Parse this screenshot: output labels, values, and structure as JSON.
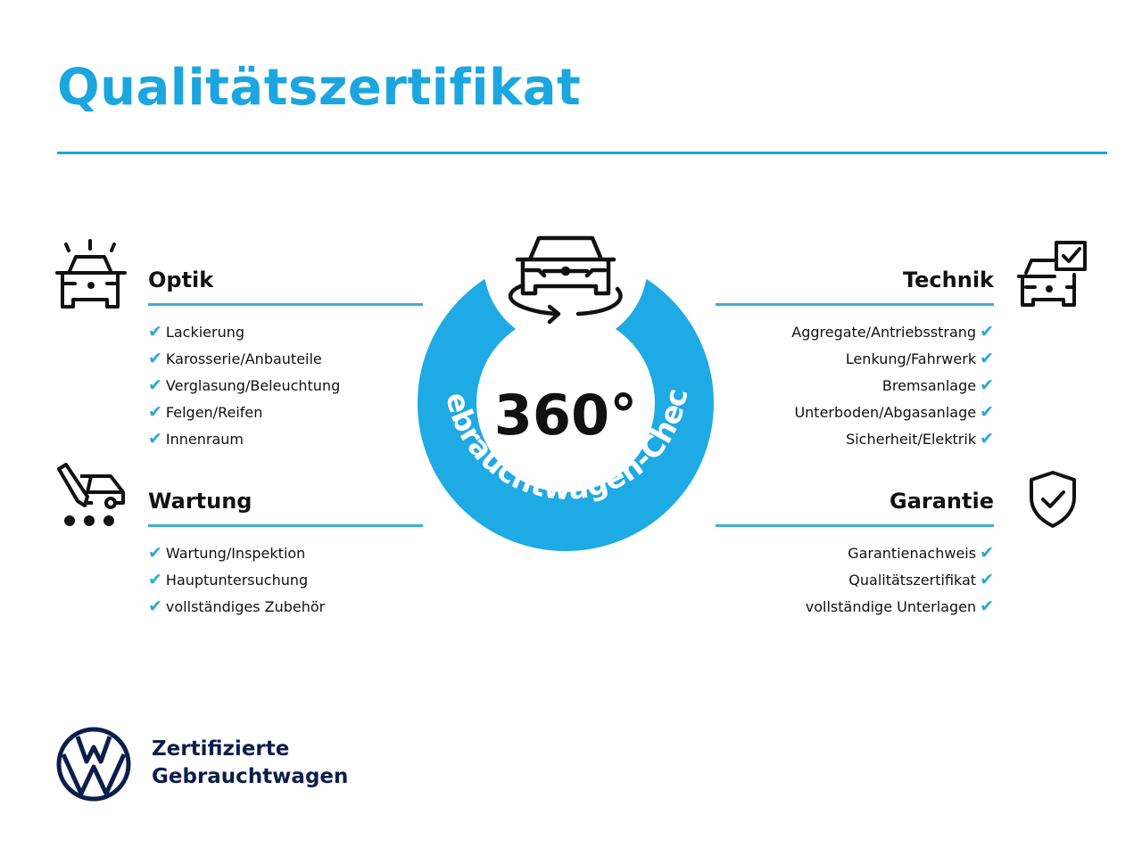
{
  "title": "Qualitätszertifikat",
  "center": {
    "degrees": "360°",
    "arc_text": "Gebrauchtwagen-Check"
  },
  "sections": {
    "optik": {
      "heading": "Optik",
      "items": [
        "Lackierung",
        "Karosserie/Anbauteile",
        "Verglasung/Beleuchtung",
        "Felgen/Reifen",
        "Innenraum"
      ]
    },
    "wartung": {
      "heading": "Wartung",
      "items": [
        "Wartung/Inspektion",
        "Hauptuntersuchung",
        "vollständiges Zubehör"
      ]
    },
    "technik": {
      "heading": "Technik",
      "items": [
        "Aggregate/Antriebsstrang",
        "Lenkung/Fahrwerk",
        "Bremsanlage",
        "Unterboden/Abgasanlage",
        "Sicherheit/Elektrik"
      ]
    },
    "garantie": {
      "heading": "Garantie",
      "items": [
        "Garantienachweis",
        "Qualitätszertifikat",
        "vollständige Unterlagen"
      ]
    }
  },
  "check_glyph": "✔",
  "footer": {
    "line1": "Zertifizierte",
    "line2": "Gebrauchtwagen"
  },
  "colors": {
    "accent": "#1ba6df",
    "vw_navy": "#0c1e4a"
  }
}
